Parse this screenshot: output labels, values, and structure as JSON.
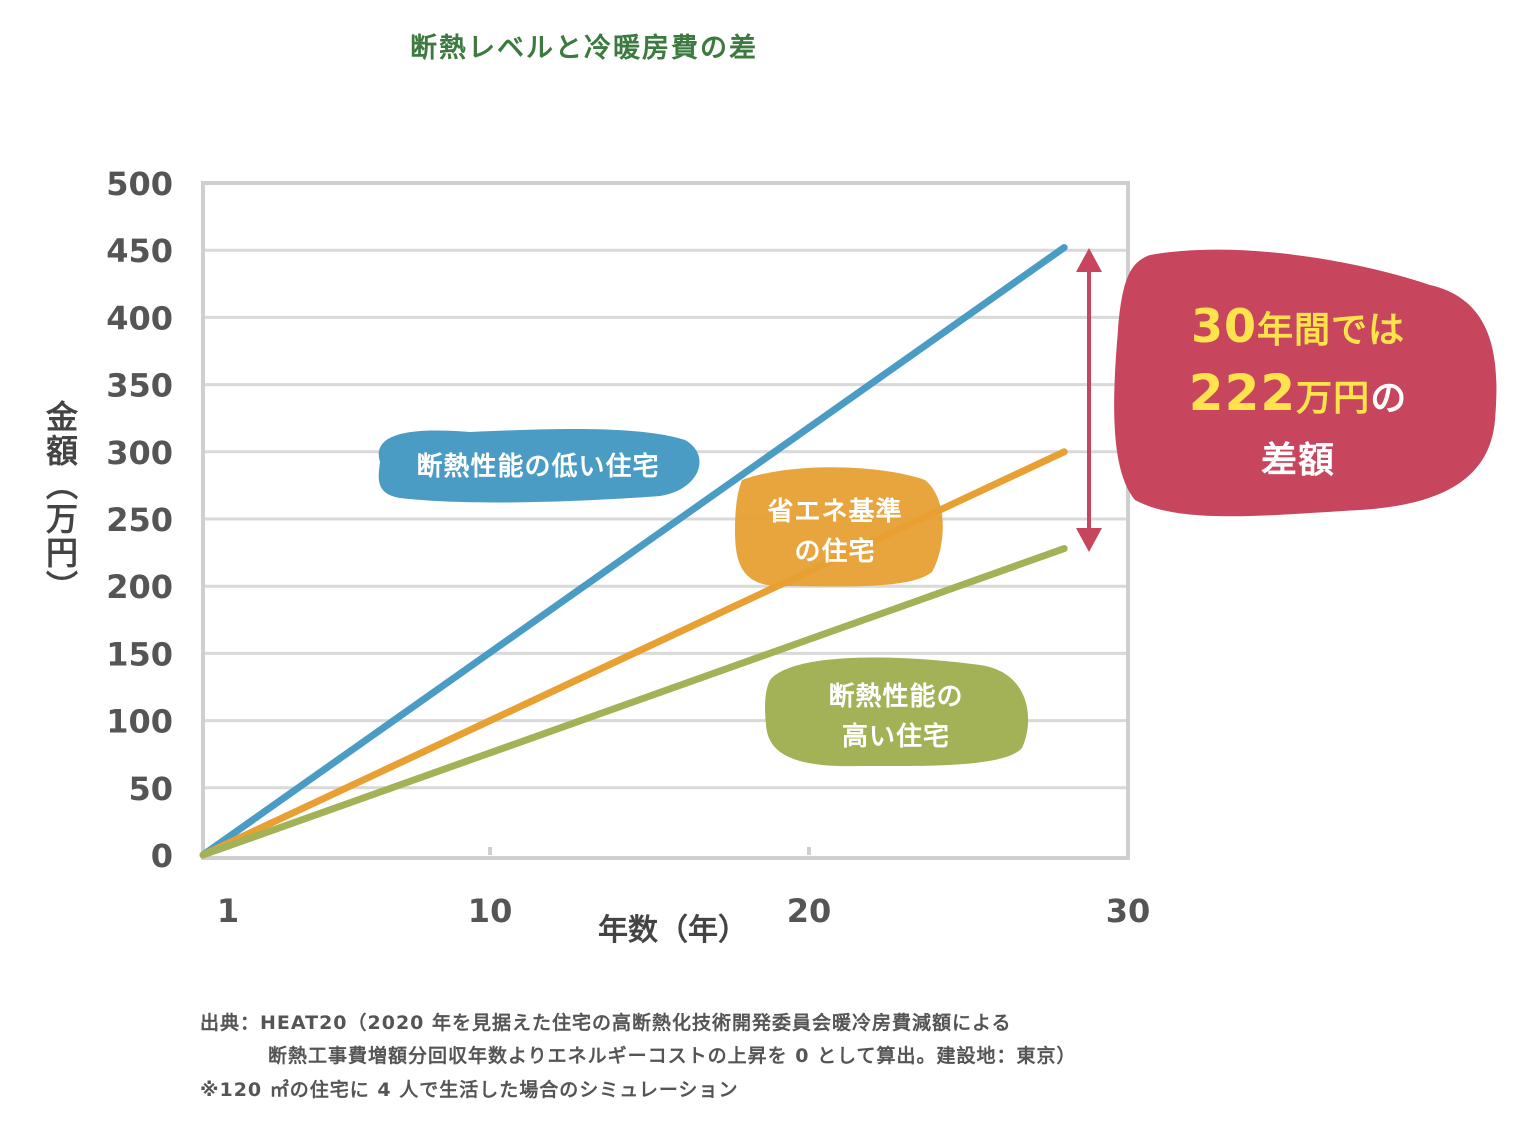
{
  "title": "断熱レベルと冷暖房費の差",
  "chart_data": {
    "type": "line",
    "xlabel": "年数（年）",
    "ylabel": "金額（万円）",
    "xlim": [
      1,
      30
    ],
    "ylim": [
      0,
      500
    ],
    "x_ticks": [
      1,
      10,
      20,
      30
    ],
    "y_ticks": [
      0,
      50,
      100,
      150,
      200,
      250,
      300,
      350,
      400,
      450,
      500
    ],
    "grid": true,
    "series": [
      {
        "name": "断熱性能の低い住宅",
        "color": "#4a9cc4",
        "x": [
          1,
          28
        ],
        "y": [
          0,
          452
        ]
      },
      {
        "name": "省エネ基準の住宅",
        "color": "#e8a033",
        "x": [
          1,
          28
        ],
        "y": [
          0,
          300
        ]
      },
      {
        "name": "断熱性能の高い住宅",
        "color": "#a3b257",
        "x": [
          1,
          28
        ],
        "y": [
          0,
          228
        ]
      }
    ],
    "labels": {
      "low": "断熱性能の低い住宅",
      "standard_line1": "省エネ基準",
      "standard_line2": "の住宅",
      "high_line1": "断熱性能の",
      "high_line2": "高い住宅"
    },
    "annotation": {
      "line1_num": "30",
      "line1_text": "年間では",
      "line2_num": "222",
      "line2_text_unit": "万円",
      "line2_text_tail": "の",
      "line3": "差額",
      "color": "#c8455e",
      "highlight_color": "#ffe34d"
    }
  },
  "notes": {
    "line1": "出典：HEAT20（2020 年を見据えた住宅の高断熱化技術開発委員会暖冷房費減額による",
    "line2": "断熱工事費増額分回収年数よりエネルギーコストの上昇を 0 として算出。建設地：東京）",
    "line3": "※120 ㎡の住宅に 4 人で生活した場合のシミュレーション"
  }
}
